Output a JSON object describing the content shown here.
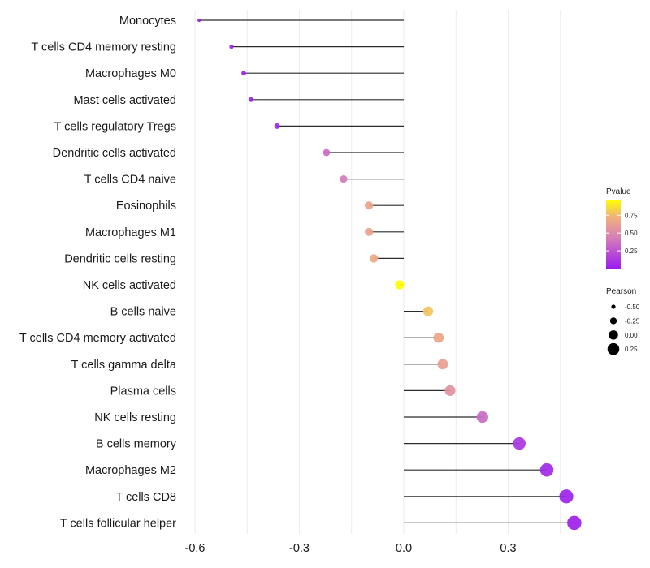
{
  "chart_data": {
    "type": "lollipop",
    "title": "",
    "xlabel": "",
    "ylabel": "",
    "xlim": [
      -0.62,
      0.52
    ],
    "x_ticks": [
      -0.6,
      -0.3,
      0.0,
      0.3
    ],
    "x_tick_labels": [
      "-0.6",
      "-0.3",
      "0.0",
      "0.3"
    ],
    "grid": true,
    "categories": [
      "Monocytes",
      "T cells CD4 memory resting",
      "Macrophages M0",
      "Mast cells activated",
      "T cells regulatory  Tregs ",
      "Dendritic cells activated",
      "T cells CD4 naive",
      "Eosinophils",
      "Macrophages M1",
      "Dendritic cells resting",
      "NK cells activated",
      "B cells naive",
      "T cells CD4 memory activated",
      "T cells gamma delta",
      "Plasma cells",
      "NK cells resting",
      "B cells memory",
      "Macrophages M2",
      "T cells CD8",
      "T cells follicular helper"
    ],
    "pearson": [
      -0.588,
      -0.495,
      -0.46,
      -0.439,
      -0.364,
      -0.222,
      -0.173,
      -0.1,
      -0.1,
      -0.086,
      -0.012,
      0.07,
      0.1,
      0.112,
      0.133,
      0.226,
      0.332,
      0.411,
      0.467,
      0.49
    ],
    "pvalue": [
      0.0,
      0.02,
      0.02,
      0.02,
      0.05,
      0.35,
      0.42,
      0.65,
      0.65,
      0.68,
      0.97,
      0.78,
      0.66,
      0.62,
      0.55,
      0.35,
      0.12,
      0.06,
      0.03,
      0.02
    ],
    "legend": {
      "placement": "right",
      "color": {
        "title": "Pvalue",
        "ticks": [
          0.25,
          0.5,
          0.75
        ],
        "tick_labels": [
          "0.25",
          "0.50",
          "0.75"
        ],
        "range": [
          0.0,
          0.97
        ],
        "low_color": "#9a1bf0",
        "mid_color": "#d67fb8",
        "high_color": "#ffff00"
      },
      "size": {
        "title": "Pearson",
        "values": [
          -0.5,
          -0.25,
          0.0,
          0.25
        ],
        "labels": [
          "-0.50",
          "-0.25",
          "0.00",
          "0.25"
        ]
      }
    }
  }
}
